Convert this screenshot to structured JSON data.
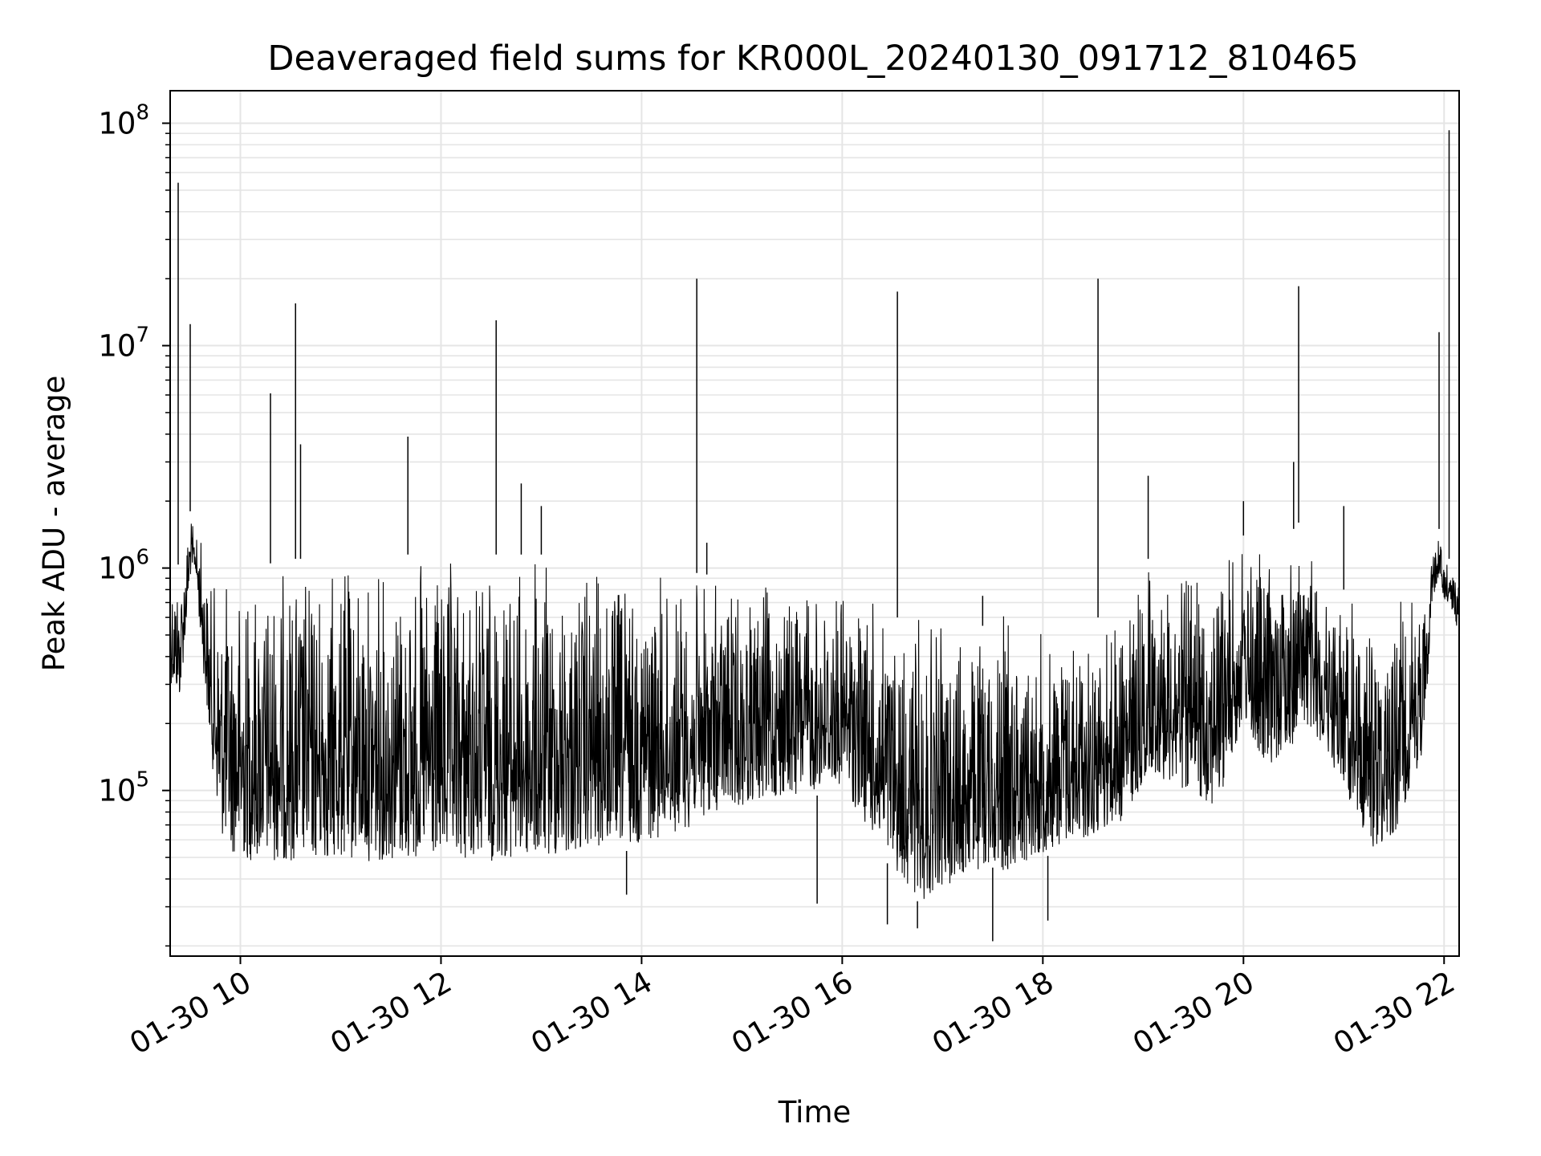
{
  "chart_data": {
    "type": "line",
    "title": "Deaveraged field sums for KR000L_20240130_091712_810465",
    "xlabel": "Time",
    "ylabel": "Peak ADU - average",
    "yscale": "log",
    "ylim": [
      18000,
      140000000
    ],
    "xlim_hours": [
      9.3,
      22.15
    ],
    "x_tick_labels": [
      "01-30 10",
      "01-30 12",
      "01-30 14",
      "01-30 16",
      "01-30 18",
      "01-30 20",
      "01-30 22"
    ],
    "x_tick_hours": [
      10,
      12,
      14,
      16,
      18,
      20,
      22
    ],
    "y_tick_labels": [
      {
        "base": "10",
        "exp": "5",
        "value": 100000
      },
      {
        "base": "10",
        "exp": "6",
        "value": 1000000
      },
      {
        "base": "10",
        "exp": "7",
        "value": 10000000
      },
      {
        "base": "10",
        "exp": "8",
        "value": 100000000
      }
    ],
    "grid": true,
    "line_color": "#000000",
    "grid_color": "#e5e5e5",
    "series": [
      {
        "x_hours": [
          9.3,
          9.4,
          9.5,
          9.55,
          9.6,
          9.7,
          9.8,
          9.9,
          10.0,
          10.3,
          10.55,
          10.8,
          11.0,
          11.5,
          11.67,
          12.0,
          12.5,
          12.55,
          12.8,
          13.0,
          13.5,
          14.0,
          14.5,
          14.55,
          14.9,
          15.5,
          16.0,
          16.3,
          16.55,
          16.8,
          17.0,
          17.3,
          17.5,
          17.6,
          17.8,
          18.0,
          18.3,
          18.55,
          18.8,
          19.0,
          19.05,
          19.3,
          19.5,
          19.75,
          20.0,
          20.2,
          20.5,
          20.55,
          20.8,
          21.0,
          21.2,
          21.3,
          21.5,
          21.8,
          21.88,
          21.95,
          22.0,
          22.05,
          22.15
        ],
        "envelope_upper": [
          1200000,
          1000000,
          1800000,
          1400000,
          1500000,
          900000,
          950000,
          1000000,
          1000000,
          1050000,
          1100000,
          1100000,
          1100000,
          1150000,
          1150000,
          1100000,
          1150000,
          1150000,
          1150000,
          1150000,
          1050000,
          1000000,
          950000,
          950000,
          900000,
          850000,
          900000,
          750000,
          600000,
          600000,
          600000,
          550000,
          550000,
          700000,
          600000,
          550000,
          600000,
          600000,
          700000,
          900000,
          1100000,
          1200000,
          900000,
          1300000,
          1400000,
          1200000,
          1500000,
          1600000,
          900000,
          800000,
          700000,
          700000,
          750000,
          800000,
          1300000,
          1500000,
          1100000,
          1100000,
          900000
        ],
        "envelope_lower": [
          300000,
          250000,
          900000,
          1000000,
          500000,
          150000,
          60000,
          50000,
          45000,
          45000,
          45000,
          45000,
          45000,
          45000,
          45000,
          45000,
          45000,
          45000,
          45000,
          45000,
          50000,
          55000,
          65000,
          70000,
          80000,
          90000,
          100000,
          60000,
          40000,
          30000,
          35000,
          40000,
          45000,
          40000,
          45000,
          50000,
          55000,
          60000,
          70000,
          100000,
          120000,
          100000,
          90000,
          80000,
          200000,
          120000,
          150000,
          200000,
          150000,
          100000,
          60000,
          50000,
          60000,
          150000,
          700000,
          900000,
          700000,
          700000,
          500000
        ],
        "spikes": [
          {
            "x_hour": 9.38,
            "value": 54000000
          },
          {
            "x_hour": 9.5,
            "value": 12500000
          },
          {
            "x_hour": 10.3,
            "value": 6100000
          },
          {
            "x_hour": 10.55,
            "value": 15500000
          },
          {
            "x_hour": 10.6,
            "value": 3600000
          },
          {
            "x_hour": 11.67,
            "value": 3900000
          },
          {
            "x_hour": 12.55,
            "value": 13000000
          },
          {
            "x_hour": 12.8,
            "value": 2400000
          },
          {
            "x_hour": 13.0,
            "value": 1900000
          },
          {
            "x_hour": 14.55,
            "value": 20000000
          },
          {
            "x_hour": 14.65,
            "value": 1300000
          },
          {
            "x_hour": 16.55,
            "value": 17500000
          },
          {
            "x_hour": 17.4,
            "value": 750000
          },
          {
            "x_hour": 18.55,
            "value": 20000000
          },
          {
            "x_hour": 19.05,
            "value": 2600000
          },
          {
            "x_hour": 20.0,
            "value": 2000000
          },
          {
            "x_hour": 20.5,
            "value": 3000000
          },
          {
            "x_hour": 20.55,
            "value": 18500000
          },
          {
            "x_hour": 21.0,
            "value": 1900000
          },
          {
            "x_hour": 21.95,
            "value": 11500000
          },
          {
            "x_hour": 22.05,
            "value": 93000000
          }
        ],
        "dips": [
          {
            "x_hour": 16.45,
            "value": 25000
          },
          {
            "x_hour": 16.75,
            "value": 24000
          },
          {
            "x_hour": 17.5,
            "value": 21000
          },
          {
            "x_hour": 18.05,
            "value": 26000
          },
          {
            "x_hour": 15.75,
            "value": 31000
          },
          {
            "x_hour": 13.85,
            "value": 34000
          }
        ]
      }
    ]
  }
}
